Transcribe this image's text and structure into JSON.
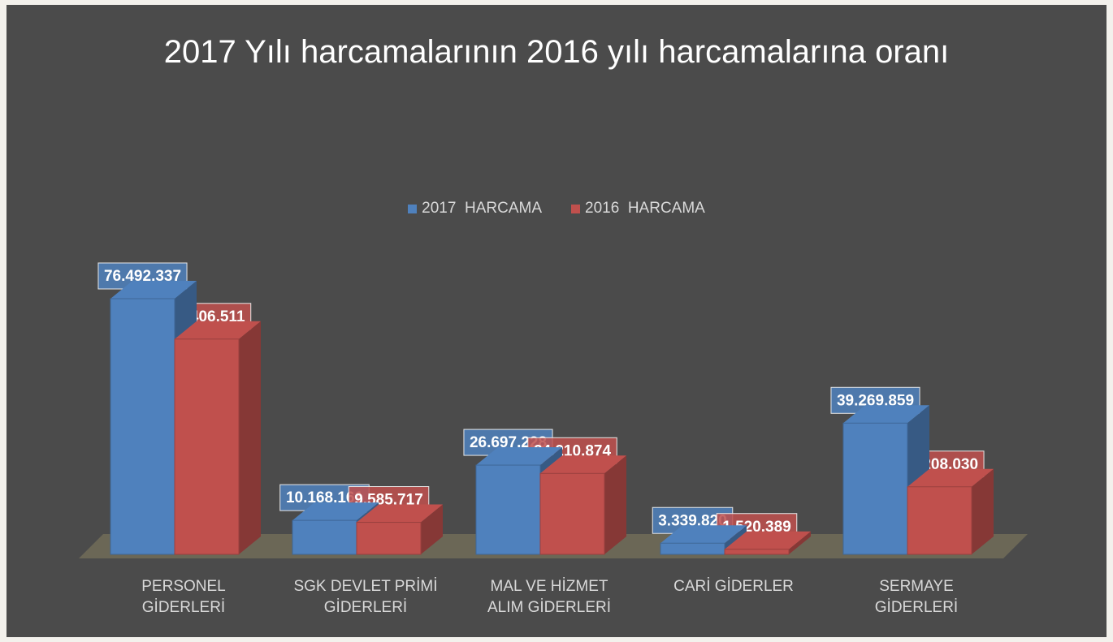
{
  "chart_data": {
    "type": "bar3d",
    "title": "2017 Yılı harcamalarının 2016 yılı harcamalarına oranı",
    "categories": [
      "PERSONEL\nGİDERLERİ",
      "SGK DEVLET PRİMİ\nGİDERLERİ",
      "MAL VE HİZMET\nALIM GİDERLERİ",
      "CARİ GİDERLER",
      "SERMAYE\nGİDERLERİ"
    ],
    "series": [
      {
        "name": "2017  HARCAMA",
        "color": "#4f81bd",
        "values": [
          76492337,
          10168161,
          26697228,
          3339820,
          39269859
        ],
        "value_labels": [
          "76.492.337",
          "10.168.161",
          "26.697.228",
          "3.339.820",
          "39.269.859"
        ]
      },
      {
        "name": "2016  HARCAMA",
        "color": "#c0504d",
        "values": [
          64406511,
          9585717,
          24210874,
          1520389,
          20208030
        ],
        "value_labels": [
          "64.406.511",
          "9.585.717",
          "24.210.874",
          "1.520.389",
          "20.208.030"
        ]
      }
    ],
    "legend": "top"
  }
}
